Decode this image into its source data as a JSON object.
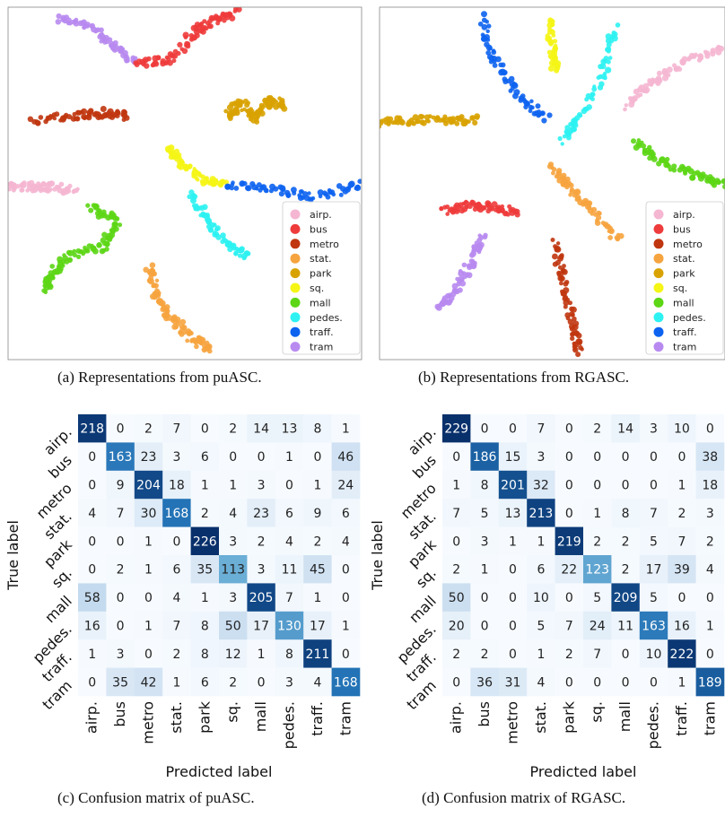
{
  "captions": {
    "a": "(a) Representations from puASC.",
    "b": "(b) Representations from RGASC.",
    "c": "(c) Confusion matrix of puASC.",
    "d": "(d) Confusion matrix of RGASC."
  },
  "legend": [
    {
      "label": "airp.",
      "color": "#f5b6d2"
    },
    {
      "label": "bus",
      "color": "#ee3b3b"
    },
    {
      "label": "metro",
      "color": "#c0360f"
    },
    {
      "label": "stat.",
      "color": "#f6a43f"
    },
    {
      "label": "park",
      "color": "#d8a200"
    },
    {
      "label": "sq.",
      "color": "#f5f516"
    },
    {
      "label": "mall",
      "color": "#5cd615"
    },
    {
      "label": "pedes.",
      "color": "#2ef2f2"
    },
    {
      "label": "traff.",
      "color": "#0d63f0"
    },
    {
      "label": "tram",
      "color": "#b88af0"
    }
  ],
  "chart_data": [
    {
      "type": "scatter",
      "id": "a",
      "clusters": [
        {
          "class": "tram",
          "path": [
            [
              0.14,
              0.03
            ],
            [
              0.24,
              0.06
            ],
            [
              0.3,
              0.11
            ],
            [
              0.36,
              0.16
            ]
          ]
        },
        {
          "class": "bus",
          "path": [
            [
              0.36,
              0.16
            ],
            [
              0.46,
              0.15
            ],
            [
              0.53,
              0.07
            ],
            [
              0.58,
              0.04
            ],
            [
              0.65,
              0.01
            ]
          ]
        },
        {
          "class": "metro",
          "path": [
            [
              0.07,
              0.32
            ],
            [
              0.18,
              0.31
            ],
            [
              0.26,
              0.3
            ],
            [
              0.34,
              0.31
            ]
          ]
        },
        {
          "class": "park",
          "path": [
            [
              0.62,
              0.31
            ],
            [
              0.66,
              0.27
            ],
            [
              0.7,
              0.32
            ],
            [
              0.74,
              0.26
            ],
            [
              0.78,
              0.28
            ]
          ]
        },
        {
          "class": "sq.",
          "path": [
            [
              0.45,
              0.4
            ],
            [
              0.49,
              0.44
            ],
            [
              0.55,
              0.49
            ],
            [
              0.62,
              0.5
            ]
          ]
        },
        {
          "class": "traff.",
          "path": [
            [
              0.62,
              0.5
            ],
            [
              0.75,
              0.52
            ],
            [
              0.88,
              0.54
            ],
            [
              1.0,
              0.5
            ]
          ]
        },
        {
          "class": "pedes.",
          "path": [
            [
              0.52,
              0.53
            ],
            [
              0.56,
              0.6
            ],
            [
              0.62,
              0.67
            ],
            [
              0.68,
              0.71
            ]
          ]
        },
        {
          "class": "airp.",
          "path": [
            [
              0.0,
              0.51
            ],
            [
              0.06,
              0.51
            ],
            [
              0.12,
              0.51
            ],
            [
              0.19,
              0.52
            ]
          ]
        },
        {
          "class": "mall",
          "path": [
            [
              0.23,
              0.57
            ],
            [
              0.31,
              0.6
            ],
            [
              0.27,
              0.68
            ],
            [
              0.18,
              0.7
            ],
            [
              0.12,
              0.76
            ],
            [
              0.11,
              0.8
            ]
          ]
        },
        {
          "class": "stat.",
          "path": [
            [
              0.4,
              0.73
            ],
            [
              0.42,
              0.82
            ],
            [
              0.46,
              0.88
            ],
            [
              0.52,
              0.94
            ],
            [
              0.57,
              0.97
            ]
          ]
        }
      ]
    },
    {
      "type": "scatter",
      "id": "b",
      "clusters": [
        {
          "class": "traff.",
          "path": [
            [
              0.3,
              0.03
            ],
            [
              0.33,
              0.15
            ],
            [
              0.4,
              0.25
            ],
            [
              0.49,
              0.32
            ]
          ]
        },
        {
          "class": "sq.",
          "path": [
            [
              0.49,
              0.03
            ],
            [
              0.5,
              0.12
            ],
            [
              0.51,
              0.18
            ]
          ]
        },
        {
          "class": "pedes.",
          "path": [
            [
              0.68,
              0.06
            ],
            [
              0.65,
              0.18
            ],
            [
              0.57,
              0.32
            ],
            [
              0.53,
              0.38
            ]
          ]
        },
        {
          "class": "park",
          "path": [
            [
              0.0,
              0.33
            ],
            [
              0.1,
              0.32
            ],
            [
              0.2,
              0.32
            ],
            [
              0.28,
              0.32
            ]
          ]
        },
        {
          "class": "airp.",
          "path": [
            [
              0.72,
              0.28
            ],
            [
              0.78,
              0.22
            ],
            [
              0.88,
              0.16
            ],
            [
              1.0,
              0.11
            ]
          ]
        },
        {
          "class": "mall",
          "path": [
            [
              0.74,
              0.38
            ],
            [
              0.82,
              0.44
            ],
            [
              0.92,
              0.48
            ],
            [
              1.0,
              0.5
            ]
          ]
        },
        {
          "class": "bus",
          "path": [
            [
              0.18,
              0.58
            ],
            [
              0.26,
              0.56
            ],
            [
              0.33,
              0.57
            ],
            [
              0.4,
              0.58
            ]
          ]
        },
        {
          "class": "stat.",
          "path": [
            [
              0.5,
              0.45
            ],
            [
              0.55,
              0.52
            ],
            [
              0.62,
              0.58
            ],
            [
              0.7,
              0.67
            ]
          ]
        },
        {
          "class": "tram",
          "path": [
            [
              0.3,
              0.65
            ],
            [
              0.27,
              0.72
            ],
            [
              0.22,
              0.8
            ],
            [
              0.17,
              0.86
            ]
          ]
        },
        {
          "class": "metro",
          "path": [
            [
              0.51,
              0.67
            ],
            [
              0.53,
              0.78
            ],
            [
              0.56,
              0.9
            ],
            [
              0.58,
              0.98
            ]
          ]
        }
      ]
    },
    {
      "type": "heatmap",
      "id": "c",
      "xlabel": "Predicted label",
      "ylabel": "True label",
      "categories": [
        "airp.",
        "bus",
        "metro",
        "stat.",
        "park",
        "sq.",
        "mall",
        "pedes.",
        "traff.",
        "tram"
      ],
      "values": [
        [
          218,
          0,
          2,
          7,
          0,
          2,
          14,
          13,
          8,
          1
        ],
        [
          0,
          163,
          23,
          3,
          6,
          0,
          0,
          1,
          0,
          46
        ],
        [
          0,
          9,
          204,
          18,
          1,
          1,
          3,
          0,
          1,
          24
        ],
        [
          4,
          7,
          30,
          168,
          2,
          4,
          23,
          6,
          9,
          6
        ],
        [
          0,
          0,
          1,
          0,
          226,
          3,
          2,
          4,
          2,
          4
        ],
        [
          0,
          2,
          1,
          6,
          35,
          113,
          3,
          11,
          45,
          0
        ],
        [
          58,
          0,
          0,
          4,
          1,
          3,
          205,
          7,
          1,
          0
        ],
        [
          16,
          0,
          1,
          7,
          8,
          50,
          17,
          130,
          17,
          1
        ],
        [
          1,
          3,
          0,
          2,
          8,
          12,
          1,
          8,
          211,
          0
        ],
        [
          0,
          35,
          42,
          1,
          6,
          2,
          0,
          3,
          4,
          168
        ]
      ]
    },
    {
      "type": "heatmap",
      "id": "d",
      "xlabel": "Predicted label",
      "ylabel": "True label",
      "categories": [
        "airp.",
        "bus",
        "metro",
        "stat.",
        "park",
        "sq.",
        "mall",
        "pedes.",
        "traff.",
        "tram"
      ],
      "values": [
        [
          229,
          0,
          0,
          7,
          0,
          2,
          14,
          3,
          10,
          0
        ],
        [
          0,
          186,
          15,
          3,
          0,
          0,
          0,
          0,
          0,
          38
        ],
        [
          1,
          8,
          201,
          32,
          0,
          0,
          0,
          0,
          1,
          18
        ],
        [
          7,
          5,
          13,
          213,
          0,
          1,
          8,
          7,
          2,
          3
        ],
        [
          0,
          3,
          1,
          1,
          219,
          2,
          2,
          5,
          7,
          2
        ],
        [
          2,
          1,
          0,
          6,
          22,
          123,
          2,
          17,
          39,
          4
        ],
        [
          50,
          0,
          0,
          10,
          0,
          5,
          209,
          5,
          0,
          0
        ],
        [
          20,
          0,
          0,
          5,
          7,
          24,
          11,
          163,
          16,
          1
        ],
        [
          2,
          2,
          0,
          1,
          2,
          7,
          0,
          10,
          222,
          0
        ],
        [
          0,
          36,
          31,
          4,
          0,
          0,
          0,
          0,
          1,
          189
        ]
      ]
    }
  ]
}
